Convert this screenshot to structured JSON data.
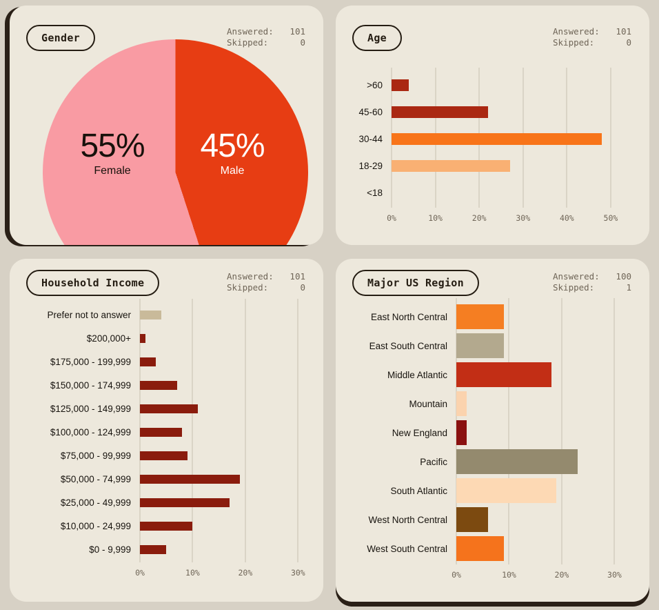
{
  "page": {
    "background": "#d7d1c5",
    "panel_background": "#ede8dc",
    "accent_dark": "#2a2017"
  },
  "chart_data": [
    {
      "id": "gender",
      "type": "pie",
      "title": "Gender",
      "stats": {
        "answered_label": "Answered:",
        "answered_value": "101",
        "skipped_label": "Skipped:",
        "skipped_value": "0"
      },
      "slices": [
        {
          "name": "Male",
          "value": 45,
          "pct_label": "45%",
          "color": "#e73d13",
          "text_color": "#ffffff"
        },
        {
          "name": "Female",
          "value": 55,
          "pct_label": "55%",
          "color": "#f99ba3",
          "text_color": "#17110b"
        }
      ]
    },
    {
      "id": "age",
      "type": "bar",
      "title": "Age",
      "stats": {
        "answered_label": "Answered:",
        "answered_value": "101",
        "skipped_label": "Skipped:",
        "skipped_value": "0"
      },
      "orientation": "horizontal",
      "categories": [
        ">60",
        "45-60",
        "30-44",
        "18-29",
        "<18"
      ],
      "values": [
        4,
        22,
        48,
        27,
        0
      ],
      "bar_colors": [
        "#aa2812",
        "#aa2812",
        "#f87419",
        "#f9b073",
        "#aa2812"
      ],
      "xmax": 53,
      "ticks": [
        0,
        10,
        20,
        30,
        40,
        50
      ],
      "tick_suffix": "%",
      "grid": true,
      "ylabel": "",
      "xlabel": ""
    },
    {
      "id": "household_income",
      "type": "bar",
      "title": "Household Income",
      "stats": {
        "answered_label": "Answered:",
        "answered_value": "101",
        "skipped_label": "Skipped:",
        "skipped_value": "0"
      },
      "orientation": "horizontal",
      "categories": [
        "Prefer not to answer",
        "$200,000+",
        "$175,000 - 199,999",
        "$150,000 - 174,999",
        "$125,000 - 149,999",
        "$100,000 - 124,999",
        "$75,000 - 99,999",
        "$50,000 - 74,999",
        "$25,000 - 49,999",
        "$10,000 - 24,999",
        "$0 - 9,999"
      ],
      "values": [
        4,
        1,
        3,
        7,
        11,
        8,
        9,
        19,
        17,
        10,
        5
      ],
      "bar_colors": [
        "#c9ba9a",
        "#8a1c0d",
        "#8a1c0d",
        "#8a1c0d",
        "#8a1c0d",
        "#8a1c0d",
        "#8a1c0d",
        "#8a1c0d",
        "#8a1c0d",
        "#8a1c0d",
        "#8a1c0d"
      ],
      "xmax": 31,
      "ticks": [
        0,
        10,
        20,
        30
      ],
      "tick_suffix": "%",
      "grid": true,
      "ylabel": "",
      "xlabel": ""
    },
    {
      "id": "major_us_region",
      "type": "bar",
      "title": "Major US Region",
      "stats": {
        "answered_label": "Answered:",
        "answered_value": "100",
        "skipped_label": "Skipped:",
        "skipped_value": "1"
      },
      "orientation": "horizontal",
      "categories": [
        "East North Central",
        "East South Central",
        "Middle Atlantic",
        "Mountain",
        "New England",
        "Pacific",
        "South Atlantic",
        "West North Central",
        "West South Central"
      ],
      "values": [
        9,
        9,
        18,
        2,
        2,
        23,
        19,
        6,
        9
      ],
      "bar_colors": [
        "#f57e22",
        "#b3a98e",
        "#c22e15",
        "#fbd3ae",
        "#8a1110",
        "#948a6e",
        "#fdd9b4",
        "#7c4a10",
        "#f5731c"
      ],
      "xmax": 34,
      "ticks": [
        0,
        10,
        20,
        30
      ],
      "tick_suffix": "%",
      "grid": true,
      "ylabel": "",
      "xlabel": ""
    }
  ]
}
